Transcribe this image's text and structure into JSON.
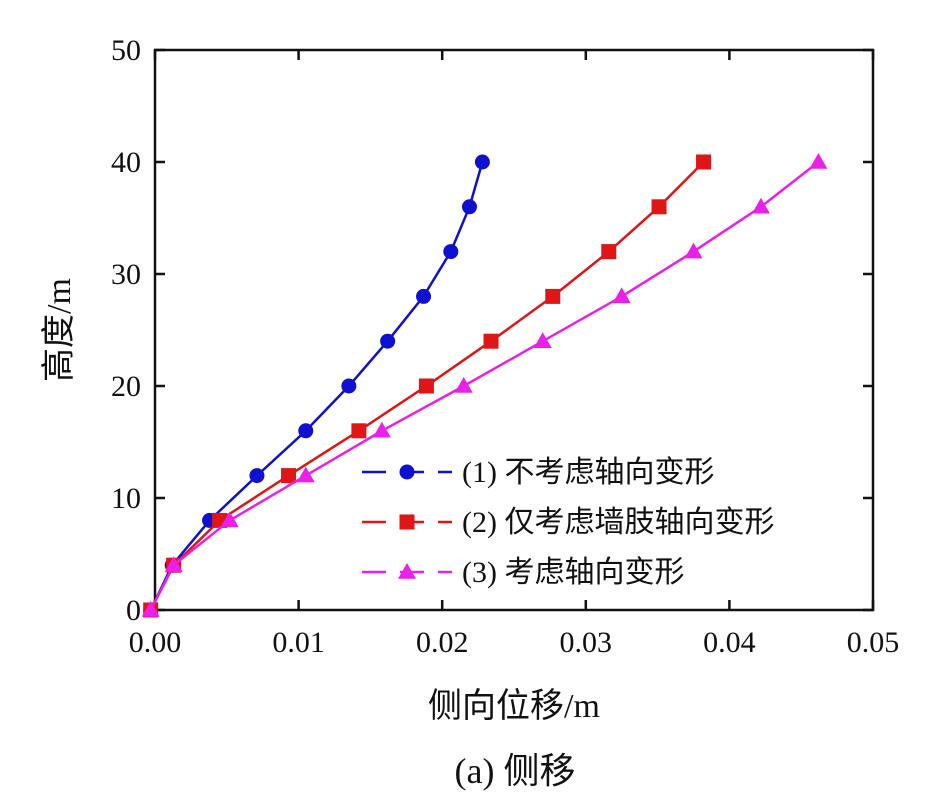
{
  "chart_data": {
    "type": "line",
    "title": "",
    "caption": "(a) 侧移",
    "xlabel": "侧向位移/m",
    "ylabel": "高度/m",
    "xlim": [
      0,
      0.05
    ],
    "ylim": [
      0,
      50
    ],
    "xticks": [
      0.0,
      0.01,
      0.02,
      0.03,
      0.04,
      0.05
    ],
    "xtick_labels": [
      "0.00",
      "0.01",
      "0.02",
      "0.03",
      "0.04",
      "0.05"
    ],
    "yticks": [
      0,
      10,
      20,
      30,
      40,
      50
    ],
    "ytick_labels": [
      "0",
      "10",
      "20",
      "30",
      "40",
      "50"
    ],
    "grid": false,
    "legend_position": "bottom-right",
    "series": [
      {
        "name": "(1) 不考虑轴向变形",
        "color": "#1010d0",
        "marker": "circle",
        "points": [
          [
            -0.0003,
            0
          ],
          [
            0.0012,
            4
          ],
          [
            0.0038,
            8
          ],
          [
            0.0071,
            12
          ],
          [
            0.0105,
            16
          ],
          [
            0.0135,
            20
          ],
          [
            0.0162,
            24
          ],
          [
            0.0187,
            28
          ],
          [
            0.0206,
            32
          ],
          [
            0.0219,
            36
          ],
          [
            0.0228,
            40
          ]
        ]
      },
      {
        "name": "(2) 仅考虑墙肢轴向变形",
        "color": "#e01515",
        "marker": "square",
        "points": [
          [
            -0.0003,
            0
          ],
          [
            0.0013,
            4
          ],
          [
            0.0045,
            8
          ],
          [
            0.0093,
            12
          ],
          [
            0.0142,
            16
          ],
          [
            0.0189,
            20
          ],
          [
            0.0234,
            24
          ],
          [
            0.0277,
            28
          ],
          [
            0.0316,
            32
          ],
          [
            0.0351,
            36
          ],
          [
            0.0382,
            40
          ]
        ]
      },
      {
        "name": "(3) 考虑轴向变形",
        "color": "#ea20ea",
        "marker": "triangle",
        "points": [
          [
            -0.0003,
            0
          ],
          [
            0.0013,
            4
          ],
          [
            0.0052,
            8
          ],
          [
            0.0105,
            12
          ],
          [
            0.0158,
            16
          ],
          [
            0.0215,
            20
          ],
          [
            0.027,
            24
          ],
          [
            0.0325,
            28
          ],
          [
            0.0375,
            32
          ],
          [
            0.0422,
            36
          ],
          [
            0.0462,
            40
          ]
        ]
      }
    ]
  }
}
